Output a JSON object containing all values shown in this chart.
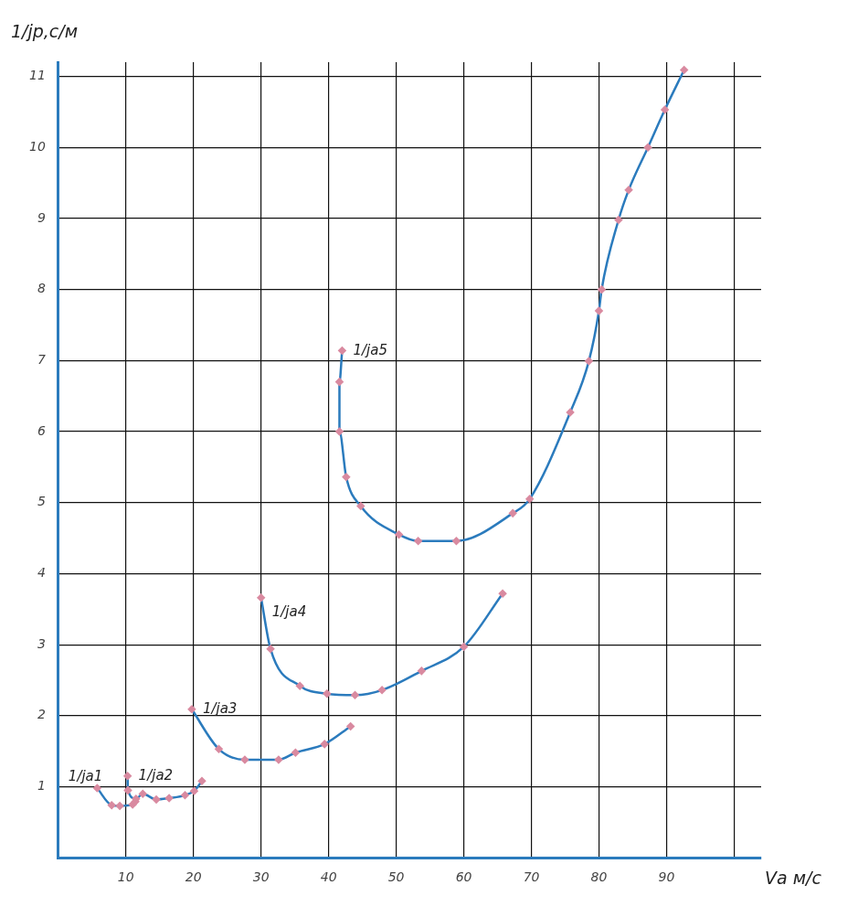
{
  "chart_data": {
    "type": "line",
    "xlabel": "Vа м/с",
    "ylabel": "1/jр,с/м",
    "xlim": [
      0,
      104
    ],
    "ylim": [
      0,
      11.2
    ],
    "xticks": [
      10,
      20,
      30,
      40,
      50,
      60,
      70,
      80,
      90,
      {
        "value": 100,
        "label": null
      }
    ],
    "yticks": [
      1,
      2,
      3,
      4,
      5,
      6,
      7,
      8,
      9,
      10,
      11
    ],
    "grid": true,
    "legend": false,
    "marker": "diamond",
    "line_style": "solid",
    "series": [
      {
        "name": "1/jа1",
        "color": "#2b7bbd",
        "x": [
          5.75,
          7.9,
          9.1,
          11,
          11.4
        ],
        "values": [
          0.98,
          0.74,
          0.73,
          0.75,
          0.79
        ]
      },
      {
        "name": "1/jа2",
        "color": "#2b7bbd",
        "x": [
          10.25,
          10.3,
          11.5,
          12.5,
          14.5,
          16.4,
          18.75,
          20.1,
          21.25
        ],
        "values": [
          1.15,
          0.95,
          0.83,
          0.9,
          0.82,
          0.84,
          0.88,
          0.94,
          1.08
        ]
      },
      {
        "name": "1/jа3",
        "color": "#2b7bbd",
        "x": [
          19.75,
          23.75,
          27.6,
          32.6,
          35.1,
          39.4,
          43.25
        ],
        "values": [
          2.09,
          1.53,
          1.38,
          1.38,
          1.48,
          1.6,
          1.85
        ]
      },
      {
        "name": "1/jа4",
        "color": "#2b7bbd",
        "x": [
          30,
          31.4,
          35.75,
          39.75,
          43.9,
          47.9,
          53.75,
          60,
          65.75
        ],
        "values": [
          3.66,
          2.94,
          2.42,
          2.31,
          2.29,
          2.36,
          2.63,
          2.97,
          3.72
        ]
      },
      {
        "name": "1/jа5",
        "color": "#2b7bbd",
        "x": [
          42,
          41.6,
          41.6,
          42.6,
          44.75,
          50.4,
          53.25,
          58.9,
          67.25,
          69.75,
          75.75,
          78.5,
          80,
          80.4,
          82.9,
          84.4,
          87.25,
          89.75,
          92.6
        ],
        "values": [
          7.14,
          6.7,
          6.0,
          5.36,
          4.95,
          4.55,
          4.46,
          4.46,
          4.85,
          5.05,
          6.27,
          6.99,
          7.7,
          8.0,
          8.98,
          9.4,
          10.0,
          10.53,
          11.09
        ]
      }
    ]
  }
}
